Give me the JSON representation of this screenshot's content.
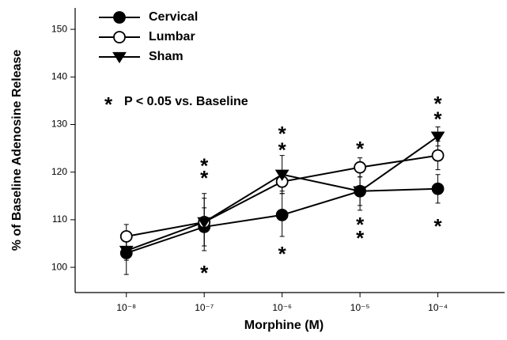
{
  "chart_data": {
    "type": "line",
    "xlabel": "Morphine (M)",
    "ylabel": "% of Baseline Adenosine Release",
    "x": [
      1e-08,
      1e-07,
      1e-06,
      1e-05,
      0.0001
    ],
    "xscale": "log",
    "xlim": [
      2.2e-09,
      0.00072
    ],
    "xticks": [
      {
        "value": 1e-08,
        "label": "10⁻⁸"
      },
      {
        "value": 1e-07,
        "label": "10⁻⁷"
      },
      {
        "value": 1e-06,
        "label": "10⁻⁶"
      },
      {
        "value": 1e-05,
        "label": "10⁻⁵"
      },
      {
        "value": 0.0001,
        "label": "10⁻⁴"
      }
    ],
    "ylim": [
      94.7,
      154.5
    ],
    "yticks": [
      100,
      110,
      120,
      130,
      140,
      150
    ],
    "legend": "upper left",
    "series": [
      {
        "name": "Cervical",
        "color": "#000000",
        "marker": "filled-circle",
        "values": [
          103,
          108.5,
          111,
          116,
          116.5
        ],
        "errors": [
          4.5,
          4,
          4.5,
          3,
          3
        ]
      },
      {
        "name": "Lumbar",
        "color": "#000000",
        "marker": "open-circle",
        "values": [
          106.5,
          109.5,
          118,
          121,
          123.5
        ],
        "errors": [
          2.5,
          6,
          2,
          2,
          3
        ]
      },
      {
        "name": "Sham",
        "color": "#000000",
        "marker": "filled-triangle-down",
        "values": [
          103.5,
          109.5,
          119.5,
          116,
          127.5
        ],
        "errors": [
          2,
          5,
          4,
          4,
          2
        ]
      }
    ],
    "note": {
      "symbol": "*",
      "text": "P < 0.05  vs. Baseline"
    },
    "annotations": [
      {
        "text": "*",
        "x": 1e-07,
        "y": 121.8
      },
      {
        "text": "*",
        "x": 1e-07,
        "y": 119.3
      },
      {
        "text": "*",
        "x": 1e-07,
        "y": 99.3
      },
      {
        "text": "*",
        "x": 1e-06,
        "y": 128.6
      },
      {
        "text": "*",
        "x": 1e-06,
        "y": 125.2
      },
      {
        "text": "*",
        "x": 1e-06,
        "y": 103.3
      },
      {
        "text": "*",
        "x": 1e-05,
        "y": 125.4
      },
      {
        "text": "*",
        "x": 1e-05,
        "y": 109.5
      },
      {
        "text": "*",
        "x": 1e-05,
        "y": 106.6
      },
      {
        "text": "*",
        "x": 0.0001,
        "y": 134.9
      },
      {
        "text": "*",
        "x": 0.0001,
        "y": 131.6
      },
      {
        "text": "*",
        "x": 0.0001,
        "y": 109.1
      }
    ]
  }
}
